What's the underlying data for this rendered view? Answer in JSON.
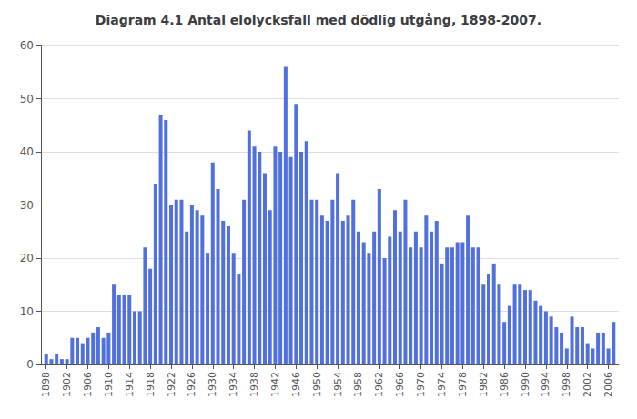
{
  "chart_data": {
    "type": "bar",
    "title": "Diagram 4.1 Antal elolycksfall med dödlig utgång, 1898-2007.",
    "x": [
      1898,
      1899,
      1900,
      1901,
      1902,
      1903,
      1904,
      1905,
      1906,
      1907,
      1908,
      1909,
      1910,
      1911,
      1912,
      1913,
      1914,
      1915,
      1916,
      1917,
      1918,
      1919,
      1920,
      1921,
      1922,
      1923,
      1924,
      1925,
      1926,
      1927,
      1928,
      1929,
      1930,
      1931,
      1932,
      1933,
      1934,
      1935,
      1936,
      1937,
      1938,
      1939,
      1940,
      1941,
      1942,
      1943,
      1944,
      1945,
      1946,
      1947,
      1948,
      1949,
      1950,
      1951,
      1952,
      1953,
      1954,
      1955,
      1956,
      1957,
      1958,
      1959,
      1960,
      1961,
      1962,
      1963,
      1964,
      1965,
      1966,
      1967,
      1968,
      1969,
      1970,
      1971,
      1972,
      1973,
      1974,
      1975,
      1976,
      1977,
      1978,
      1979,
      1980,
      1981,
      1982,
      1983,
      1984,
      1985,
      1986,
      1987,
      1988,
      1989,
      1990,
      1991,
      1992,
      1993,
      1994,
      1995,
      1996,
      1997,
      1998,
      1999,
      2000,
      2001,
      2002,
      2003,
      2004,
      2005,
      2006,
      2007
    ],
    "values": [
      2,
      1,
      2,
      1,
      1,
      5,
      5,
      4,
      5,
      6,
      7,
      5,
      6,
      15,
      13,
      13,
      13,
      10,
      10,
      22,
      18,
      34,
      47,
      46,
      30,
      31,
      31,
      25,
      30,
      29,
      28,
      21,
      38,
      33,
      27,
      26,
      21,
      17,
      31,
      44,
      41,
      40,
      36,
      29,
      41,
      40,
      56,
      39,
      49,
      40,
      42,
      31,
      31,
      28,
      27,
      31,
      36,
      27,
      28,
      31,
      25,
      23,
      21,
      25,
      33,
      20,
      24,
      29,
      25,
      31,
      22,
      25,
      22,
      28,
      25,
      27,
      19,
      22,
      22,
      23,
      23,
      28,
      22,
      22,
      15,
      17,
      19,
      15,
      8,
      11,
      15,
      15,
      14,
      14,
      12,
      11,
      10,
      9,
      7,
      6,
      3,
      9,
      7,
      7,
      4,
      3,
      6,
      6,
      3,
      8
    ],
    "xlim": [
      1897,
      2008
    ],
    "xticks": [
      1898,
      1902,
      1906,
      1910,
      1914,
      1918,
      1922,
      1926,
      1930,
      1934,
      1938,
      1942,
      1946,
      1950,
      1954,
      1958,
      1962,
      1966,
      1970,
      1974,
      1978,
      1982,
      1986,
      1990,
      1994,
      1998,
      2002,
      2006
    ],
    "ylim": [
      0,
      60
    ],
    "yticks": [
      0,
      10,
      20,
      30,
      40,
      50,
      60
    ],
    "grid": true
  }
}
